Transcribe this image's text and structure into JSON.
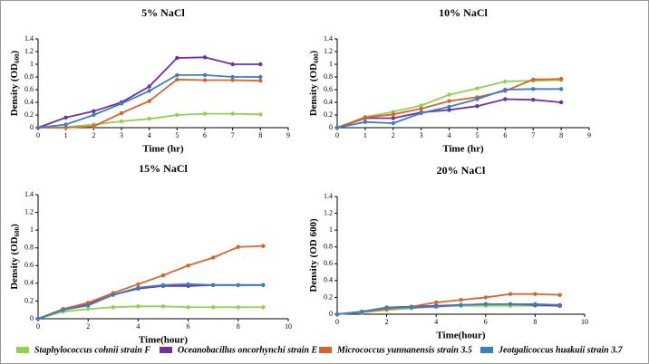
{
  "chart_data": [
    {
      "type": "line",
      "title": "5% NaCl",
      "xlabel": "Time (hr)",
      "ylabel": [
        "Density (OD",
        "600",
        ")"
      ],
      "x": [
        0,
        1,
        2,
        3,
        4,
        5,
        6,
        7,
        8
      ],
      "xlim": [
        0,
        9
      ],
      "xticks": [
        0,
        1,
        2,
        3,
        4,
        5,
        6,
        7,
        8,
        9
      ],
      "ylim": [
        0,
        1.4
      ],
      "yticks": [
        0,
        0.2,
        0.4,
        0.6,
        0.8,
        1,
        1.2,
        1.4
      ],
      "series": [
        {
          "name": "Staphylococcus cohnii strain F",
          "color": "#92d050",
          "values": [
            0,
            0.01,
            0.05,
            0.1,
            0.14,
            0.2,
            0.22,
            0.22,
            0.21
          ]
        },
        {
          "name": "Oceanobacillus oncorhynchi strain E",
          "color": "#7030a0",
          "values": [
            0,
            0.16,
            0.26,
            0.4,
            0.65,
            1.1,
            1.11,
            1.0,
            1.0
          ]
        },
        {
          "name": "Micrococcus yunnanensis strain 3.5",
          "color": "#d9642b",
          "values": [
            0,
            0,
            0.02,
            0.23,
            0.42,
            0.76,
            0.75,
            0.75,
            0.74
          ]
        },
        {
          "name": "Jeotgalicoccus huakuii strain 3.7",
          "color": "#3a7fc4",
          "values": [
            0,
            0.05,
            0.2,
            0.38,
            0.58,
            0.83,
            0.83,
            0.8,
            0.8
          ]
        }
      ]
    },
    {
      "type": "line",
      "title": "10% NaCl",
      "xlabel": "Time (hr)",
      "ylabel": [
        "Density (OD",
        "600",
        ")"
      ],
      "x": [
        0,
        1,
        2,
        3,
        4,
        5,
        6,
        7,
        8
      ],
      "xlim": [
        0,
        9
      ],
      "xticks": [
        0,
        1,
        2,
        3,
        4,
        5,
        6,
        7,
        8,
        9
      ],
      "ylim": [
        0,
        1.4
      ],
      "yticks": [
        0,
        0.2,
        0.4,
        0.6,
        0.8,
        1,
        1.2,
        1.4
      ],
      "series": [
        {
          "name": "Staphylococcus cohnii strain F",
          "color": "#92d050",
          "values": [
            0,
            0.17,
            0.25,
            0.35,
            0.52,
            0.62,
            0.73,
            0.74,
            0.75
          ]
        },
        {
          "name": "Oceanobacillus oncorhynchi strain E",
          "color": "#7030a0",
          "values": [
            0,
            0.15,
            0.15,
            0.24,
            0.28,
            0.34,
            0.45,
            0.44,
            0.4
          ]
        },
        {
          "name": "Micrococcus yunnanensis strain 3.5",
          "color": "#d9642b",
          "values": [
            0,
            0.16,
            0.21,
            0.3,
            0.42,
            0.48,
            0.58,
            0.76,
            0.77
          ]
        },
        {
          "name": "Jeotgalicoccus huakuii strain 3.7",
          "color": "#3a7fc4",
          "values": [
            0,
            0.09,
            0.07,
            0.23,
            0.33,
            0.45,
            0.6,
            0.61,
            0.61
          ]
        }
      ]
    },
    {
      "type": "line",
      "title": "15% NaCl",
      "xlabel": "Time(hour)",
      "ylabel": [
        "Density (OD",
        "600",
        ")"
      ],
      "x": [
        0,
        1,
        2,
        3,
        4,
        5,
        6,
        7,
        8,
        9
      ],
      "xlim": [
        0,
        10
      ],
      "xticks": [
        0,
        2,
        4,
        6,
        8,
        10
      ],
      "ylim": [
        0,
        1.4
      ],
      "yticks": [
        0,
        0.2,
        0.4,
        0.6,
        0.8,
        1,
        1.2,
        1.4
      ],
      "series": [
        {
          "name": "Staphylococcus cohnii strain F",
          "color": "#92d050",
          "values": [
            0,
            0.08,
            0.11,
            0.13,
            0.14,
            0.14,
            0.13,
            0.13,
            0.13,
            0.13
          ]
        },
        {
          "name": "Oceanobacillus oncorhynchi strain E",
          "color": "#7030a0",
          "values": [
            0,
            0.1,
            0.16,
            0.27,
            0.34,
            0.37,
            0.37,
            0.38,
            0.38,
            0.38
          ]
        },
        {
          "name": "Micrococcus yunnanensis strain 3.5",
          "color": "#d9642b",
          "values": [
            0,
            0.11,
            0.18,
            0.29,
            0.39,
            0.49,
            0.6,
            0.69,
            0.81,
            0.82
          ]
        },
        {
          "name": "Jeotgalicoccus huakuii strain 3.7",
          "color": "#3a7fc4",
          "values": [
            0,
            0.1,
            0.15,
            0.27,
            0.35,
            0.38,
            0.39,
            0.38,
            0.38,
            0.38
          ]
        }
      ]
    },
    {
      "type": "line",
      "title": "20% NaCl",
      "xlabel": "Time(hour)",
      "ylabel": [
        "Density (OD 600)"
      ],
      "x": [
        0,
        1,
        2,
        3,
        4,
        5,
        6,
        7,
        8,
        9
      ],
      "xlim": [
        0,
        10
      ],
      "xticks": [
        0,
        2,
        4,
        6,
        8,
        10
      ],
      "ylim": [
        0,
        1.4
      ],
      "yticks": [
        0,
        0.2,
        0.4,
        0.6,
        0.8,
        1,
        1.2,
        1.4
      ],
      "series": [
        {
          "name": "Staphylococcus cohnii strain F",
          "color": "#92d050",
          "values": [
            0,
            0.02,
            0.05,
            0.07,
            0.09,
            0.1,
            0.1,
            0.1,
            0.1,
            0.1
          ]
        },
        {
          "name": "Oceanobacillus oncorhynchi strain E",
          "color": "#7030a0",
          "values": [
            0,
            0.03,
            0.08,
            0.09,
            0.1,
            0.11,
            0.12,
            0.12,
            0.11,
            0.1
          ]
        },
        {
          "name": "Micrococcus yunnanensis strain 3.5",
          "color": "#d9642b",
          "values": [
            0,
            0.03,
            0.06,
            0.09,
            0.14,
            0.17,
            0.2,
            0.24,
            0.24,
            0.23
          ]
        },
        {
          "name": "Jeotgalicoccus huakuii strain 3.7",
          "color": "#3a7fc4",
          "values": [
            0,
            0.03,
            0.08,
            0.08,
            0.09,
            0.11,
            0.12,
            0.12,
            0.12,
            0.11
          ]
        }
      ]
    }
  ]
}
